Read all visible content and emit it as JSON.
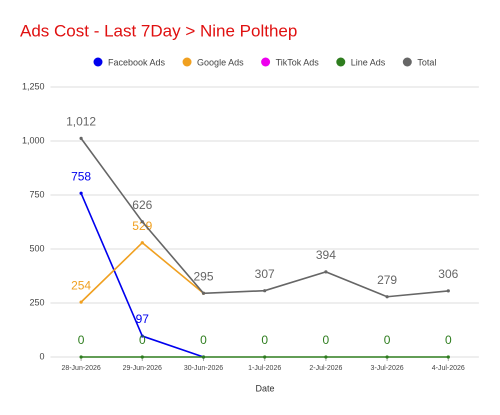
{
  "chart_data": {
    "type": "line",
    "title": "Ads Cost - Last 7Day > Nine Polthep",
    "x_label": "Date",
    "categories": [
      "28-Jun-2026",
      "29-Jun-2026",
      "30-Jun-2026",
      "1-Jul-2026",
      "2-Jul-2026",
      "3-Jul-2026",
      "4-Jul-2026"
    ],
    "series": [
      {
        "name": "Facebook Ads",
        "color": "#0000ee",
        "values": [
          758,
          97,
          0,
          null,
          null,
          null,
          null
        ],
        "value_labels": [
          "758",
          "97",
          null,
          null,
          null,
          null,
          null
        ]
      },
      {
        "name": "Google Ads",
        "color": "#f0a020",
        "values": [
          254,
          529,
          295,
          null,
          null,
          null,
          null
        ],
        "value_labels": [
          "254",
          "529",
          null,
          null,
          null,
          null,
          null
        ]
      },
      {
        "name": "TikTok Ads",
        "color": "#ee00ee",
        "values": [
          null,
          null,
          null,
          null,
          null,
          null,
          null
        ]
      },
      {
        "name": "Line Ads",
        "color": "#2e7d1e",
        "values": [
          0,
          0,
          0,
          0,
          0,
          0,
          0
        ],
        "value_labels": [
          "0",
          "0",
          "0",
          "0",
          "0",
          "0",
          "0"
        ]
      },
      {
        "name": "Total",
        "color": "#666666",
        "values": [
          1012,
          626,
          295,
          307,
          394,
          279,
          306
        ],
        "value_labels": [
          "1,012",
          "626",
          "295",
          "307",
          "394",
          "279",
          "306"
        ]
      }
    ],
    "ylim": [
      0,
      1250
    ],
    "yticks": [
      0,
      250,
      500,
      750,
      {
        "value": 1000,
        "label": "1,000"
      },
      {
        "value": 1250,
        "label": "1,250"
      }
    ],
    "grid": true,
    "legend": "top"
  }
}
